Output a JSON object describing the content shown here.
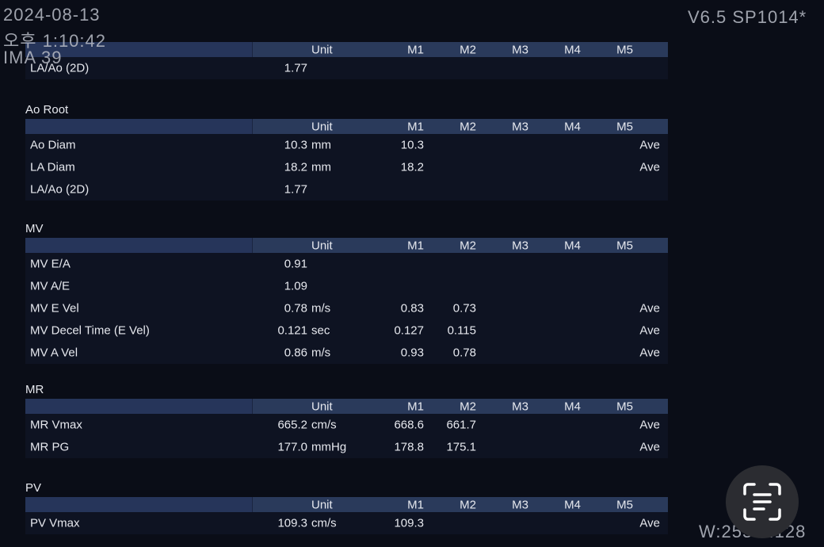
{
  "overlay": {
    "date": "2024-08-13",
    "time": "오후 1:10:42",
    "image_label": "IMA 39",
    "version": "V6.5 SP1014*",
    "window": "W:255 L:128"
  },
  "columns": {
    "unit": "Unit",
    "m1": "M1",
    "m2": "M2",
    "m3": "M3",
    "m4": "M4",
    "m5": "M5"
  },
  "sections": [
    {
      "title": "",
      "rows": [
        {
          "label": "LA/Ao (2D)",
          "value": "1.77",
          "unit": "",
          "m1": "",
          "m2": "",
          "ave": ""
        }
      ]
    },
    {
      "title": "Ao Root",
      "rows": [
        {
          "label": "Ao Diam",
          "value": "10.3",
          "unit": "mm",
          "m1": "10.3",
          "m2": "",
          "ave": "Ave"
        },
        {
          "label": "LA Diam",
          "value": "18.2",
          "unit": "mm",
          "m1": "18.2",
          "m2": "",
          "ave": "Ave"
        },
        {
          "label": "LA/Ao (2D)",
          "value": "1.77",
          "unit": "",
          "m1": "",
          "m2": "",
          "ave": ""
        }
      ]
    },
    {
      "title": "MV",
      "rows": [
        {
          "label": "MV E/A",
          "value": "0.91",
          "unit": "",
          "m1": "",
          "m2": "",
          "ave": ""
        },
        {
          "label": "MV A/E",
          "value": "1.09",
          "unit": "",
          "m1": "",
          "m2": "",
          "ave": ""
        },
        {
          "label": "MV E Vel",
          "value": "0.78",
          "unit": "m/s",
          "m1": "0.83",
          "m2": "0.73",
          "ave": "Ave"
        },
        {
          "label": "MV Decel Time (E Vel)",
          "value": "0.121",
          "unit": "sec",
          "m1": "0.127",
          "m2": "0.115",
          "ave": "Ave"
        },
        {
          "label": "MV A Vel",
          "value": "0.86",
          "unit": "m/s",
          "m1": "0.93",
          "m2": "0.78",
          "ave": "Ave"
        }
      ]
    },
    {
      "title": "MR",
      "rows": [
        {
          "label": "MR Vmax",
          "value": "665.2",
          "unit": "cm/s",
          "m1": "668.6",
          "m2": "661.7",
          "ave": "Ave"
        },
        {
          "label": "MR PG",
          "value": "177.0",
          "unit": "mmHg",
          "m1": "178.8",
          "m2": "175.1",
          "ave": "Ave"
        }
      ]
    },
    {
      "title": "PV",
      "rows": [
        {
          "label": "PV Vmax",
          "value": "109.3",
          "unit": "cm/s",
          "m1": "109.3",
          "m2": "",
          "ave": "Ave"
        }
      ]
    }
  ],
  "icons": {
    "scan_button": "text-scan-icon"
  }
}
